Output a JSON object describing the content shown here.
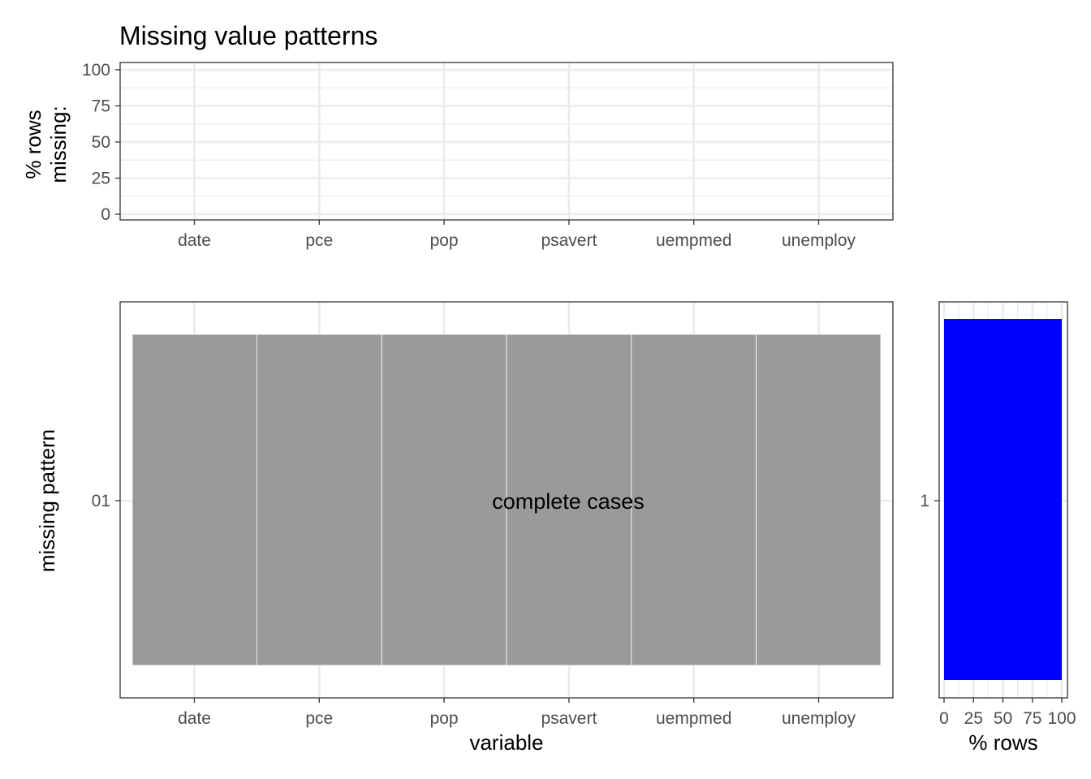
{
  "chart_data": [
    {
      "type": "bar",
      "title": "Missing value patterns",
      "ylabel_lines": [
        "% rows",
        "missing:"
      ],
      "categories": [
        "date",
        "pce",
        "pop",
        "psavert",
        "uempmed",
        "unemploy"
      ],
      "values": [
        0,
        0,
        0,
        0,
        0,
        0
      ],
      "ylim": [
        0,
        100
      ],
      "yticks": [
        "0",
        "25",
        "50",
        "75",
        "100"
      ],
      "grid": true
    },
    {
      "type": "heatmap",
      "xlabel": "variable",
      "ylabel": "missing pattern",
      "categories": [
        "date",
        "pce",
        "pop",
        "psavert",
        "uempmed",
        "unemploy"
      ],
      "patterns": [
        "01"
      ],
      "cells": [
        {
          "pattern": "01",
          "values": [
            "complete",
            "complete",
            "complete",
            "complete",
            "complete",
            "complete"
          ]
        }
      ],
      "annotation": "complete cases",
      "colors": {
        "complete": "#9a9a9a",
        "missing": "#9a5fa8"
      }
    },
    {
      "type": "bar",
      "orientation": "horizontal",
      "xlabel": "% rows",
      "categories": [
        "1"
      ],
      "values": [
        100
      ],
      "xlim": [
        0,
        100
      ],
      "xticks": [
        "0",
        "25",
        "50",
        "75",
        "100"
      ],
      "color": "#0000ff"
    }
  ]
}
